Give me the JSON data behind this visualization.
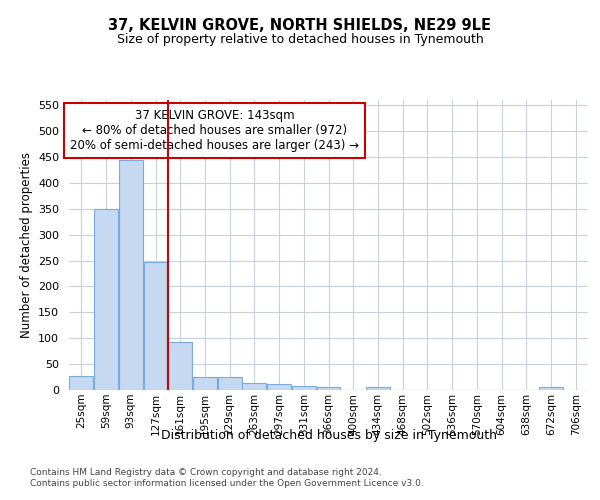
{
  "title": "37, KELVIN GROVE, NORTH SHIELDS, NE29 9LE",
  "subtitle": "Size of property relative to detached houses in Tynemouth",
  "xlabel": "Distribution of detached houses by size in Tynemouth",
  "ylabel": "Number of detached properties",
  "bar_labels": [
    "25sqm",
    "59sqm",
    "93sqm",
    "127sqm",
    "161sqm",
    "195sqm",
    "229sqm",
    "263sqm",
    "297sqm",
    "331sqm",
    "366sqm",
    "400sqm",
    "434sqm",
    "468sqm",
    "502sqm",
    "536sqm",
    "570sqm",
    "604sqm",
    "638sqm",
    "672sqm",
    "706sqm"
  ],
  "bar_values": [
    28,
    350,
    445,
    248,
    93,
    26,
    25,
    14,
    11,
    8,
    6,
    0,
    5,
    0,
    0,
    0,
    0,
    0,
    0,
    5,
    0
  ],
  "bar_color": "#c5d9f0",
  "bar_edge_color": "#7aabe0",
  "vline_x": 3.5,
  "vline_color": "#cc0000",
  "annotation_text": "37 KELVIN GROVE: 143sqm\n← 80% of detached houses are smaller (972)\n20% of semi-detached houses are larger (243) →",
  "annotation_box_color": "#ffffff",
  "annotation_box_edge": "#cc0000",
  "ylim": [
    0,
    560
  ],
  "yticks": [
    0,
    50,
    100,
    150,
    200,
    250,
    300,
    350,
    400,
    450,
    500,
    550
  ],
  "footer": "Contains HM Land Registry data © Crown copyright and database right 2024.\nContains public sector information licensed under the Open Government Licence v3.0.",
  "bg_color": "#ffffff",
  "grid_color": "#c8d0dc"
}
